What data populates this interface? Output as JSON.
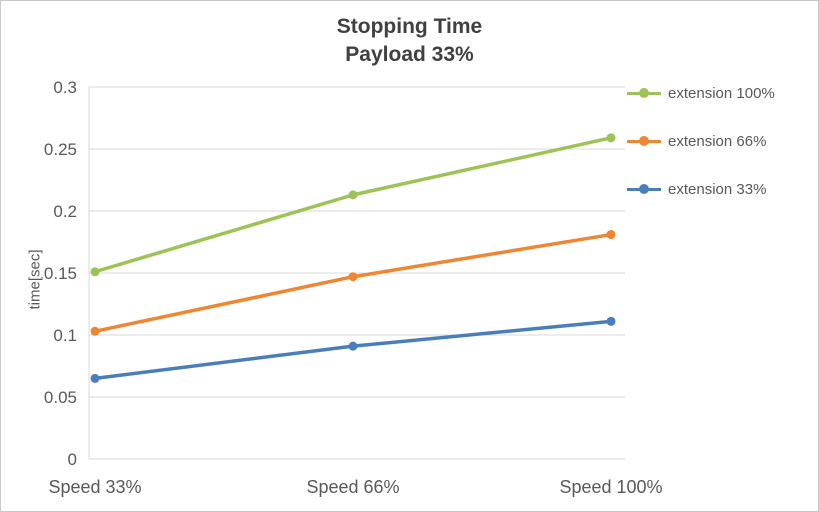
{
  "chart_data": {
    "type": "line",
    "title": "Stopping Time",
    "subtitle": "Payload 33%",
    "xlabel": "",
    "ylabel": "time[sec]",
    "ylim": [
      0,
      0.3
    ],
    "grid": "horizontal",
    "legend_position": "right",
    "categories": [
      "Speed 33%",
      "Speed 66%",
      "Speed 100%"
    ],
    "y_ticks": [
      {
        "value": 0,
        "label": "0"
      },
      {
        "value": 0.05,
        "label": "0.05"
      },
      {
        "value": 0.1,
        "label": "0.1"
      },
      {
        "value": 0.15,
        "label": "0.15"
      },
      {
        "value": 0.2,
        "label": "0.2"
      },
      {
        "value": 0.25,
        "label": "0.25"
      },
      {
        "value": 0.3,
        "label": "0.3"
      }
    ],
    "series": [
      {
        "name": "extension 100%",
        "color": "#9CC355",
        "values": [
          0.151,
          0.213,
          0.259
        ]
      },
      {
        "name": "extension 66%",
        "color": "#F08532",
        "values": [
          0.103,
          0.147,
          0.181
        ]
      },
      {
        "name": "extension 33%",
        "color": "#4A7EBB",
        "values": [
          0.065,
          0.091,
          0.111
        ]
      }
    ],
    "colors": {
      "grid": "#D9D9D9",
      "axis_text": "#595959",
      "title_text": "#404040"
    }
  }
}
